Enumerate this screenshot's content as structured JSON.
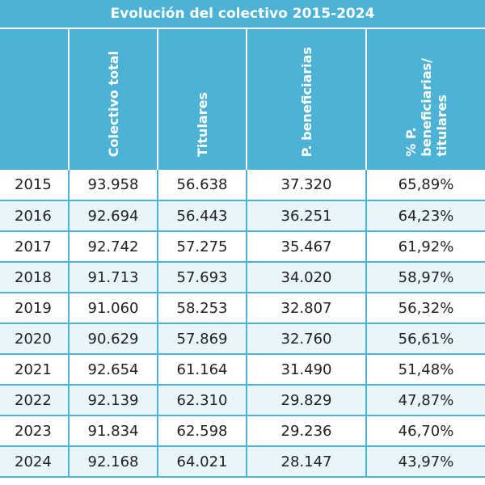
{
  "title": "Evolución del colectivo 2015-2024",
  "headers": [
    "",
    "Colectivo total",
    "Titulares",
    "P. beneficiarias",
    "% P.\nbeneficiarias/\ntitulares"
  ],
  "rows": [
    [
      "2015",
      "93.958",
      "56.638",
      "37.320",
      "65,89%"
    ],
    [
      "2016",
      "92.694",
      "56.443",
      "36.251",
      "64,23%"
    ],
    [
      "2017",
      "92.742",
      "57.275",
      "35.467",
      "61,92%"
    ],
    [
      "2018",
      "91.713",
      "57.693",
      "34.020",
      "58,97%"
    ],
    [
      "2019",
      "91.060",
      "58.253",
      "32.807",
      "56,32%"
    ],
    [
      "2020",
      "90.629",
      "57.869",
      "32.760",
      "56,61%"
    ],
    [
      "2021",
      "92.654",
      "61.164",
      "31.490",
      "51,48%"
    ],
    [
      "2022",
      "92.139",
      "62.310",
      "29.829",
      "47,87%"
    ],
    [
      "2023",
      "91.834",
      "62.598",
      "29.236",
      "46,70%"
    ],
    [
      "2024",
      "92.168",
      "64.021",
      "28.147",
      "43,97%"
    ]
  ],
  "colors": {
    "header": "#4cb3d6",
    "stripe": "#e8f5fb",
    "text": "#222222"
  }
}
